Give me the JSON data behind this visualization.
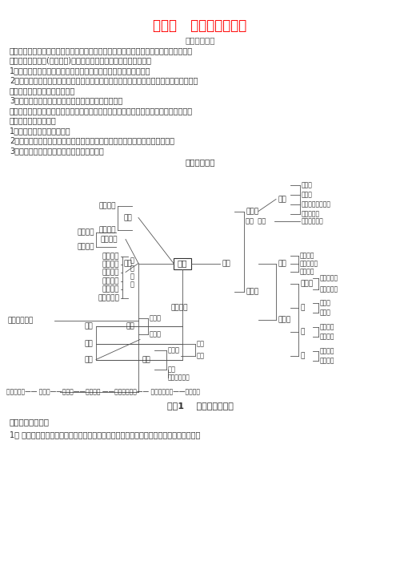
{
  "title": "第一章   基本概念和原理",
  "subtitle": "复习方法指导",
  "text_lines": [
    "化学基本概念是学习化学的基础，是化学思维的细胞，是化学现象的本质反映。就初中化",
    "学而言，概念繁多(有近百个)，要较好地掌握概念应做到以下几点：",
    "1、弄清概念的来胺去脉，掌握其要点，特别注意概念的关键词语。",
    "2、要分清大概念和小概念，掌握概念之间的区别和联系，把概念分成块，串成串，纵横成",
    "片，形成网状整体，融汇贯通。",
    "3、熟练地运用化学用语，准确表达化学概念的意义。",
    "化学基本原理在教学中占有重要地位，它对化学的学习起着指导作用，要较好掌握这些理",
    "论，应做到以下几点：",
    "1、掌握理论的要点和涵义。",
    "2、抓住理论要点和实际问题的关系，注意理论指导实际，实际问题联挂理论。",
    "3、加强练习，深化对理论联系实际的理解。"
  ],
  "section_title": "知识结构梳理",
  "topic_label": "专题1    物质的微观构成",
  "section2_title": "一、中考复习要求",
  "review_point": "1、 正确描述分子、原子、离子概念的含义以及它们的区别与联系，并能将它们进行区分。",
  "bg_color": "#ffffff",
  "title_color": "#ff0000",
  "text_color": "#333333",
  "line_color": "#555555"
}
